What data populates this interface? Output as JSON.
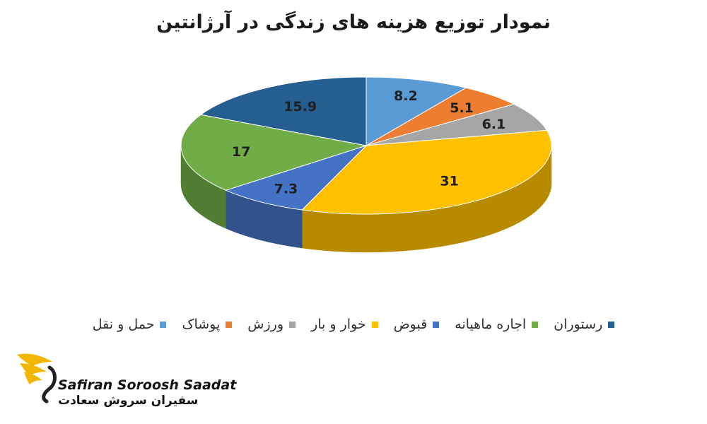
{
  "chart_data": {
    "type": "pie",
    "title": "نمودار توزیع هزینه های زندگی در آرژانتین",
    "categories": [
      "حمل و نقل",
      "پوشاک",
      "ورزش",
      "خوار و بار",
      "قبوض",
      "اجاره ماهیانه",
      "رستوران"
    ],
    "values": [
      8.2,
      5.1,
      6.1,
      31,
      7.3,
      17,
      15.9
    ],
    "colors": [
      "#5b9bd5",
      "#ed7d31",
      "#a5a5a5",
      "#ffc000",
      "#4472c4",
      "#70ad47",
      "#255e91"
    ],
    "legend": "bottom",
    "style": "3d"
  },
  "brand": {
    "name_en": "Safiran Soroosh Saadat",
    "name_fa": "سفیران سروش سعادت",
    "logo_icon": "swan-wings-icon",
    "logo_color": "#f2b705"
  }
}
